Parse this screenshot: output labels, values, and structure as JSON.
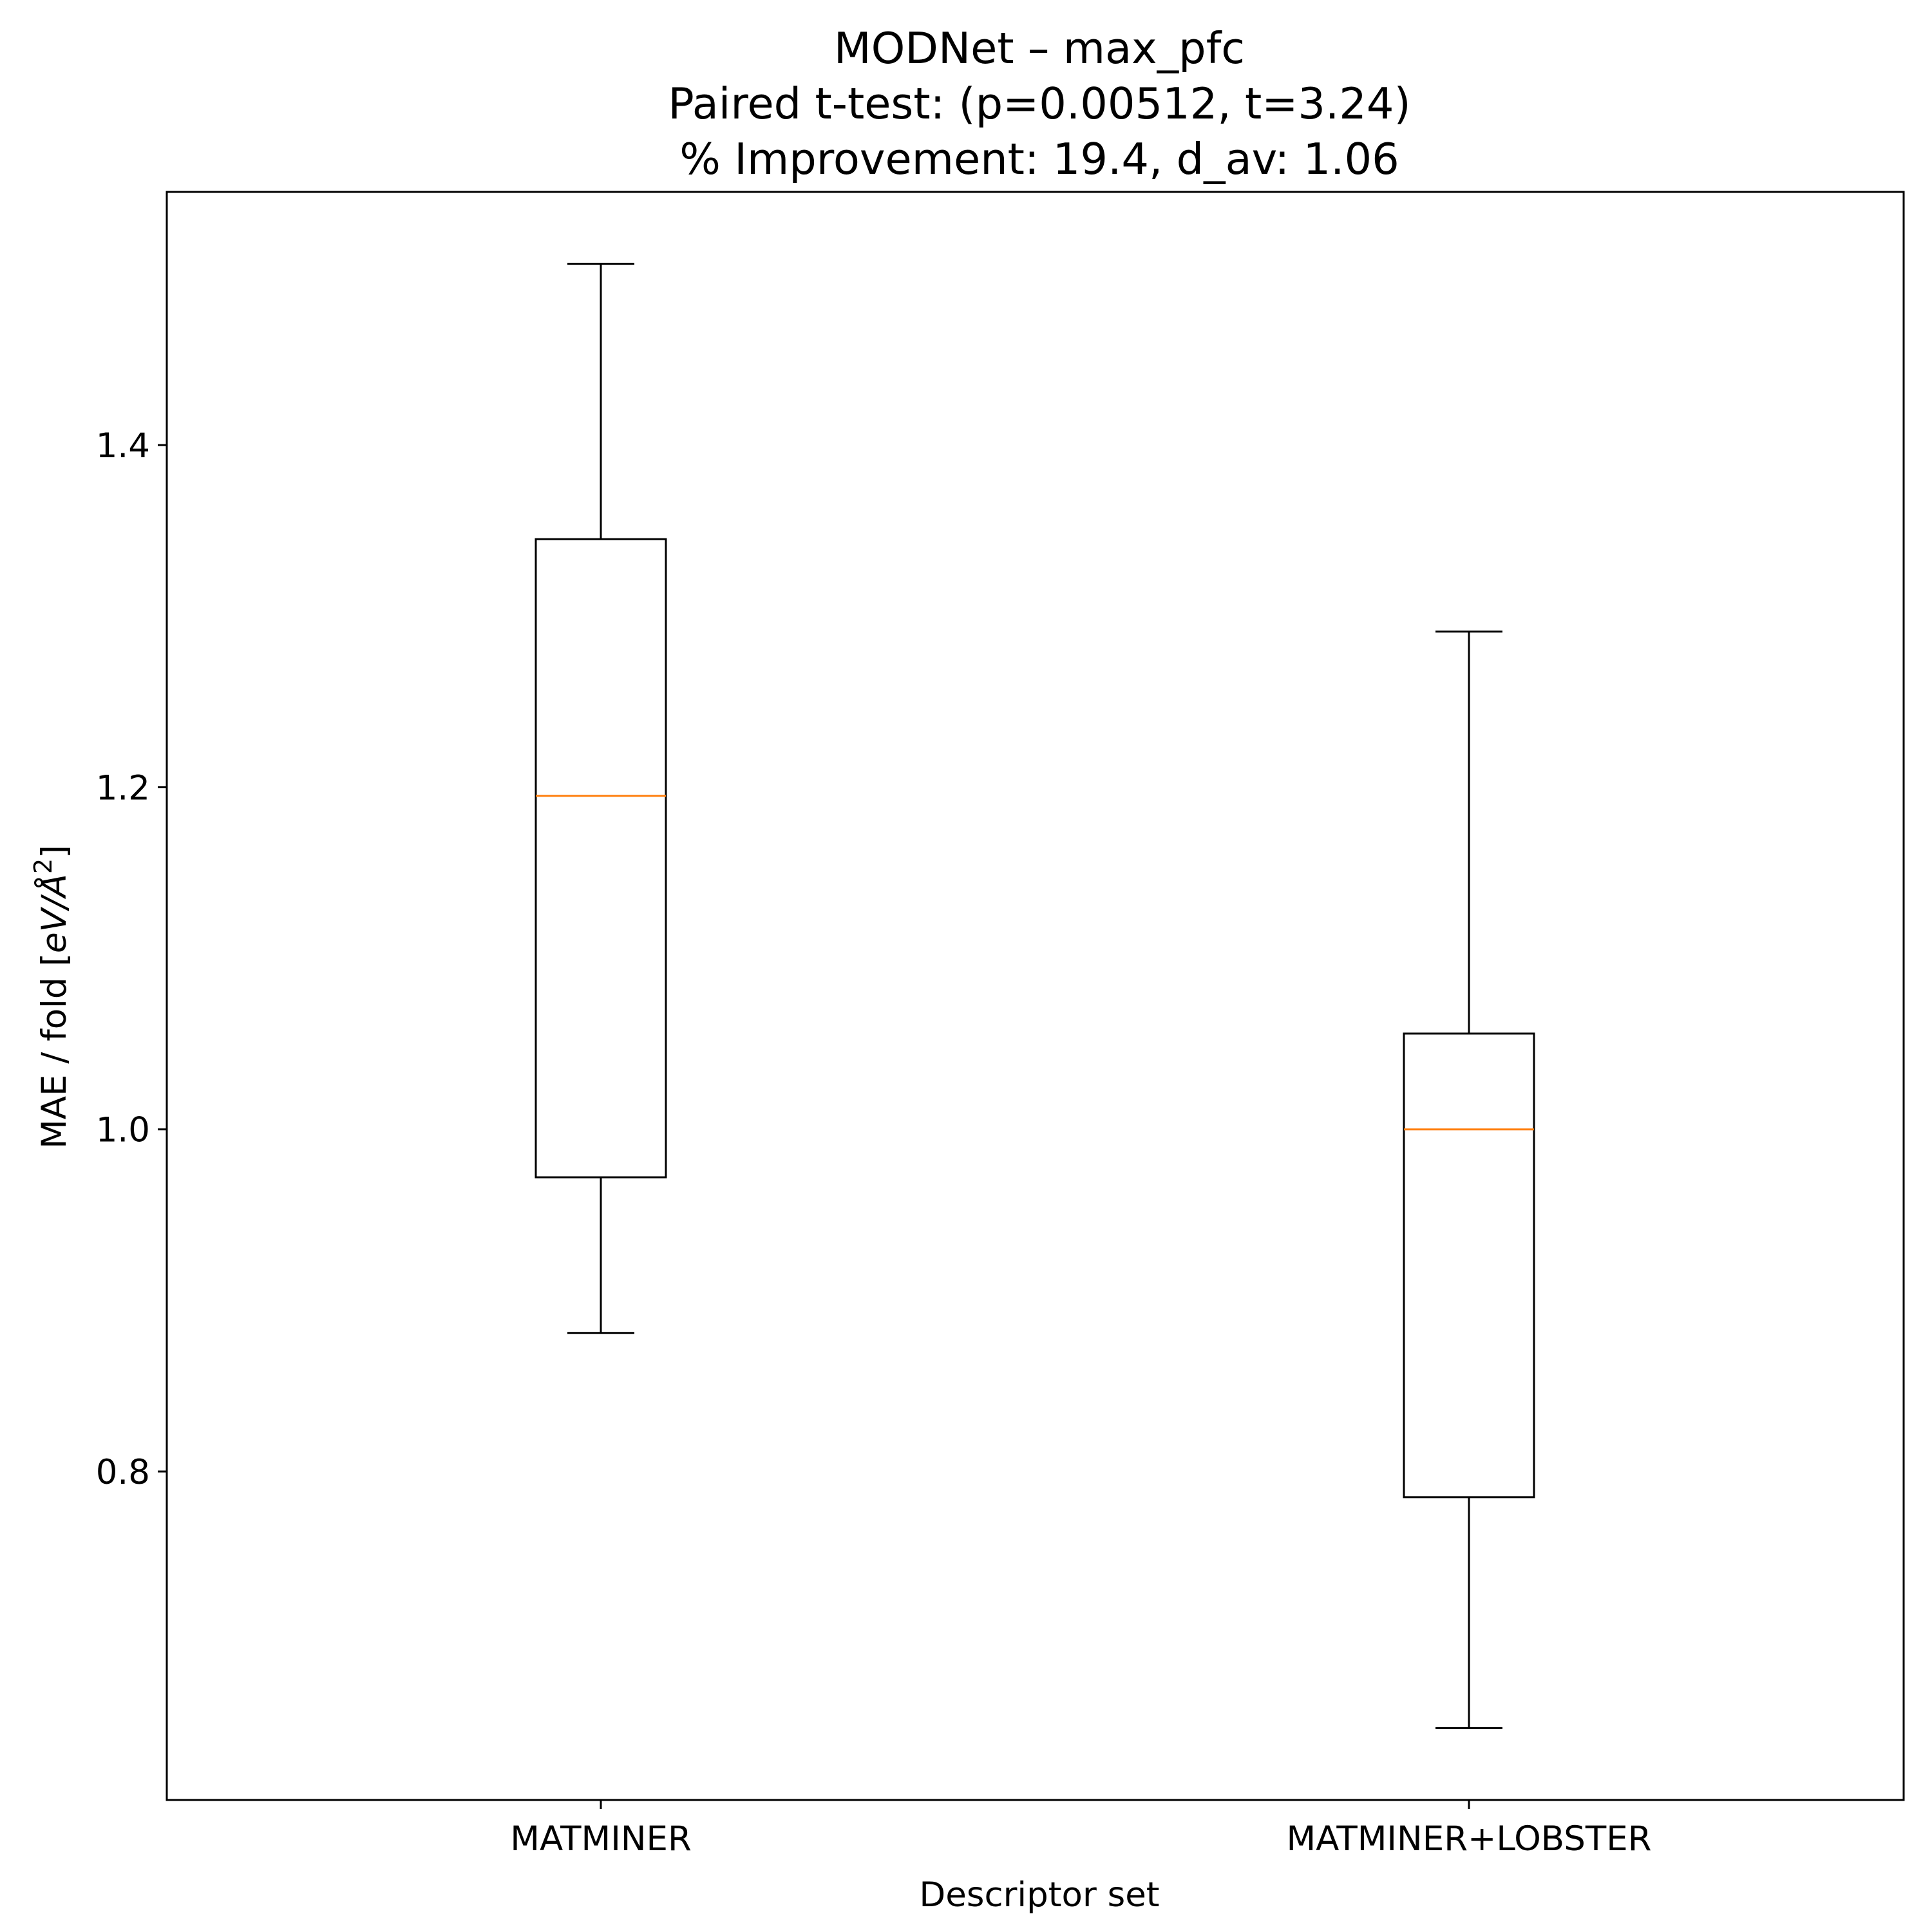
{
  "chart_data": {
    "type": "boxplot",
    "title": [
      "MODNet – max_pfc",
      "Paired t-test: (p=0.00512, t=3.24)",
      "% Improvement: 19.4, d_av: 1.06"
    ],
    "xlabel": "Descriptor set",
    "ylabel": "MAE / fold [eV/Å²]",
    "ylabel_parts": {
      "prefix": "MAE / fold [",
      "unit": "eV/Å",
      "sup": "2",
      "suffix": "]"
    },
    "categories": [
      "MATMINER",
      "MATMINER+LOBSTER"
    ],
    "series": [
      {
        "name": "MATMINER",
        "whisker_low": 0.881,
        "q1": 0.972,
        "median": 1.195,
        "q3": 1.345,
        "whisker_high": 1.506
      },
      {
        "name": "MATMINER+LOBSTER",
        "whisker_low": 0.65,
        "q1": 0.785,
        "median": 1.0,
        "q3": 1.056,
        "whisker_high": 1.291
      }
    ],
    "ylim": [
      0.608,
      1.548
    ],
    "yticks": [
      0.8,
      1.0,
      1.2,
      1.4
    ],
    "ytick_labels": [
      "0.8",
      "1.0",
      "1.2",
      "1.4"
    ],
    "grid": false,
    "legend": null,
    "colors": {
      "box": "#000000",
      "median": "#ff7f0e",
      "frame": "#000000",
      "background": "#ffffff"
    }
  }
}
